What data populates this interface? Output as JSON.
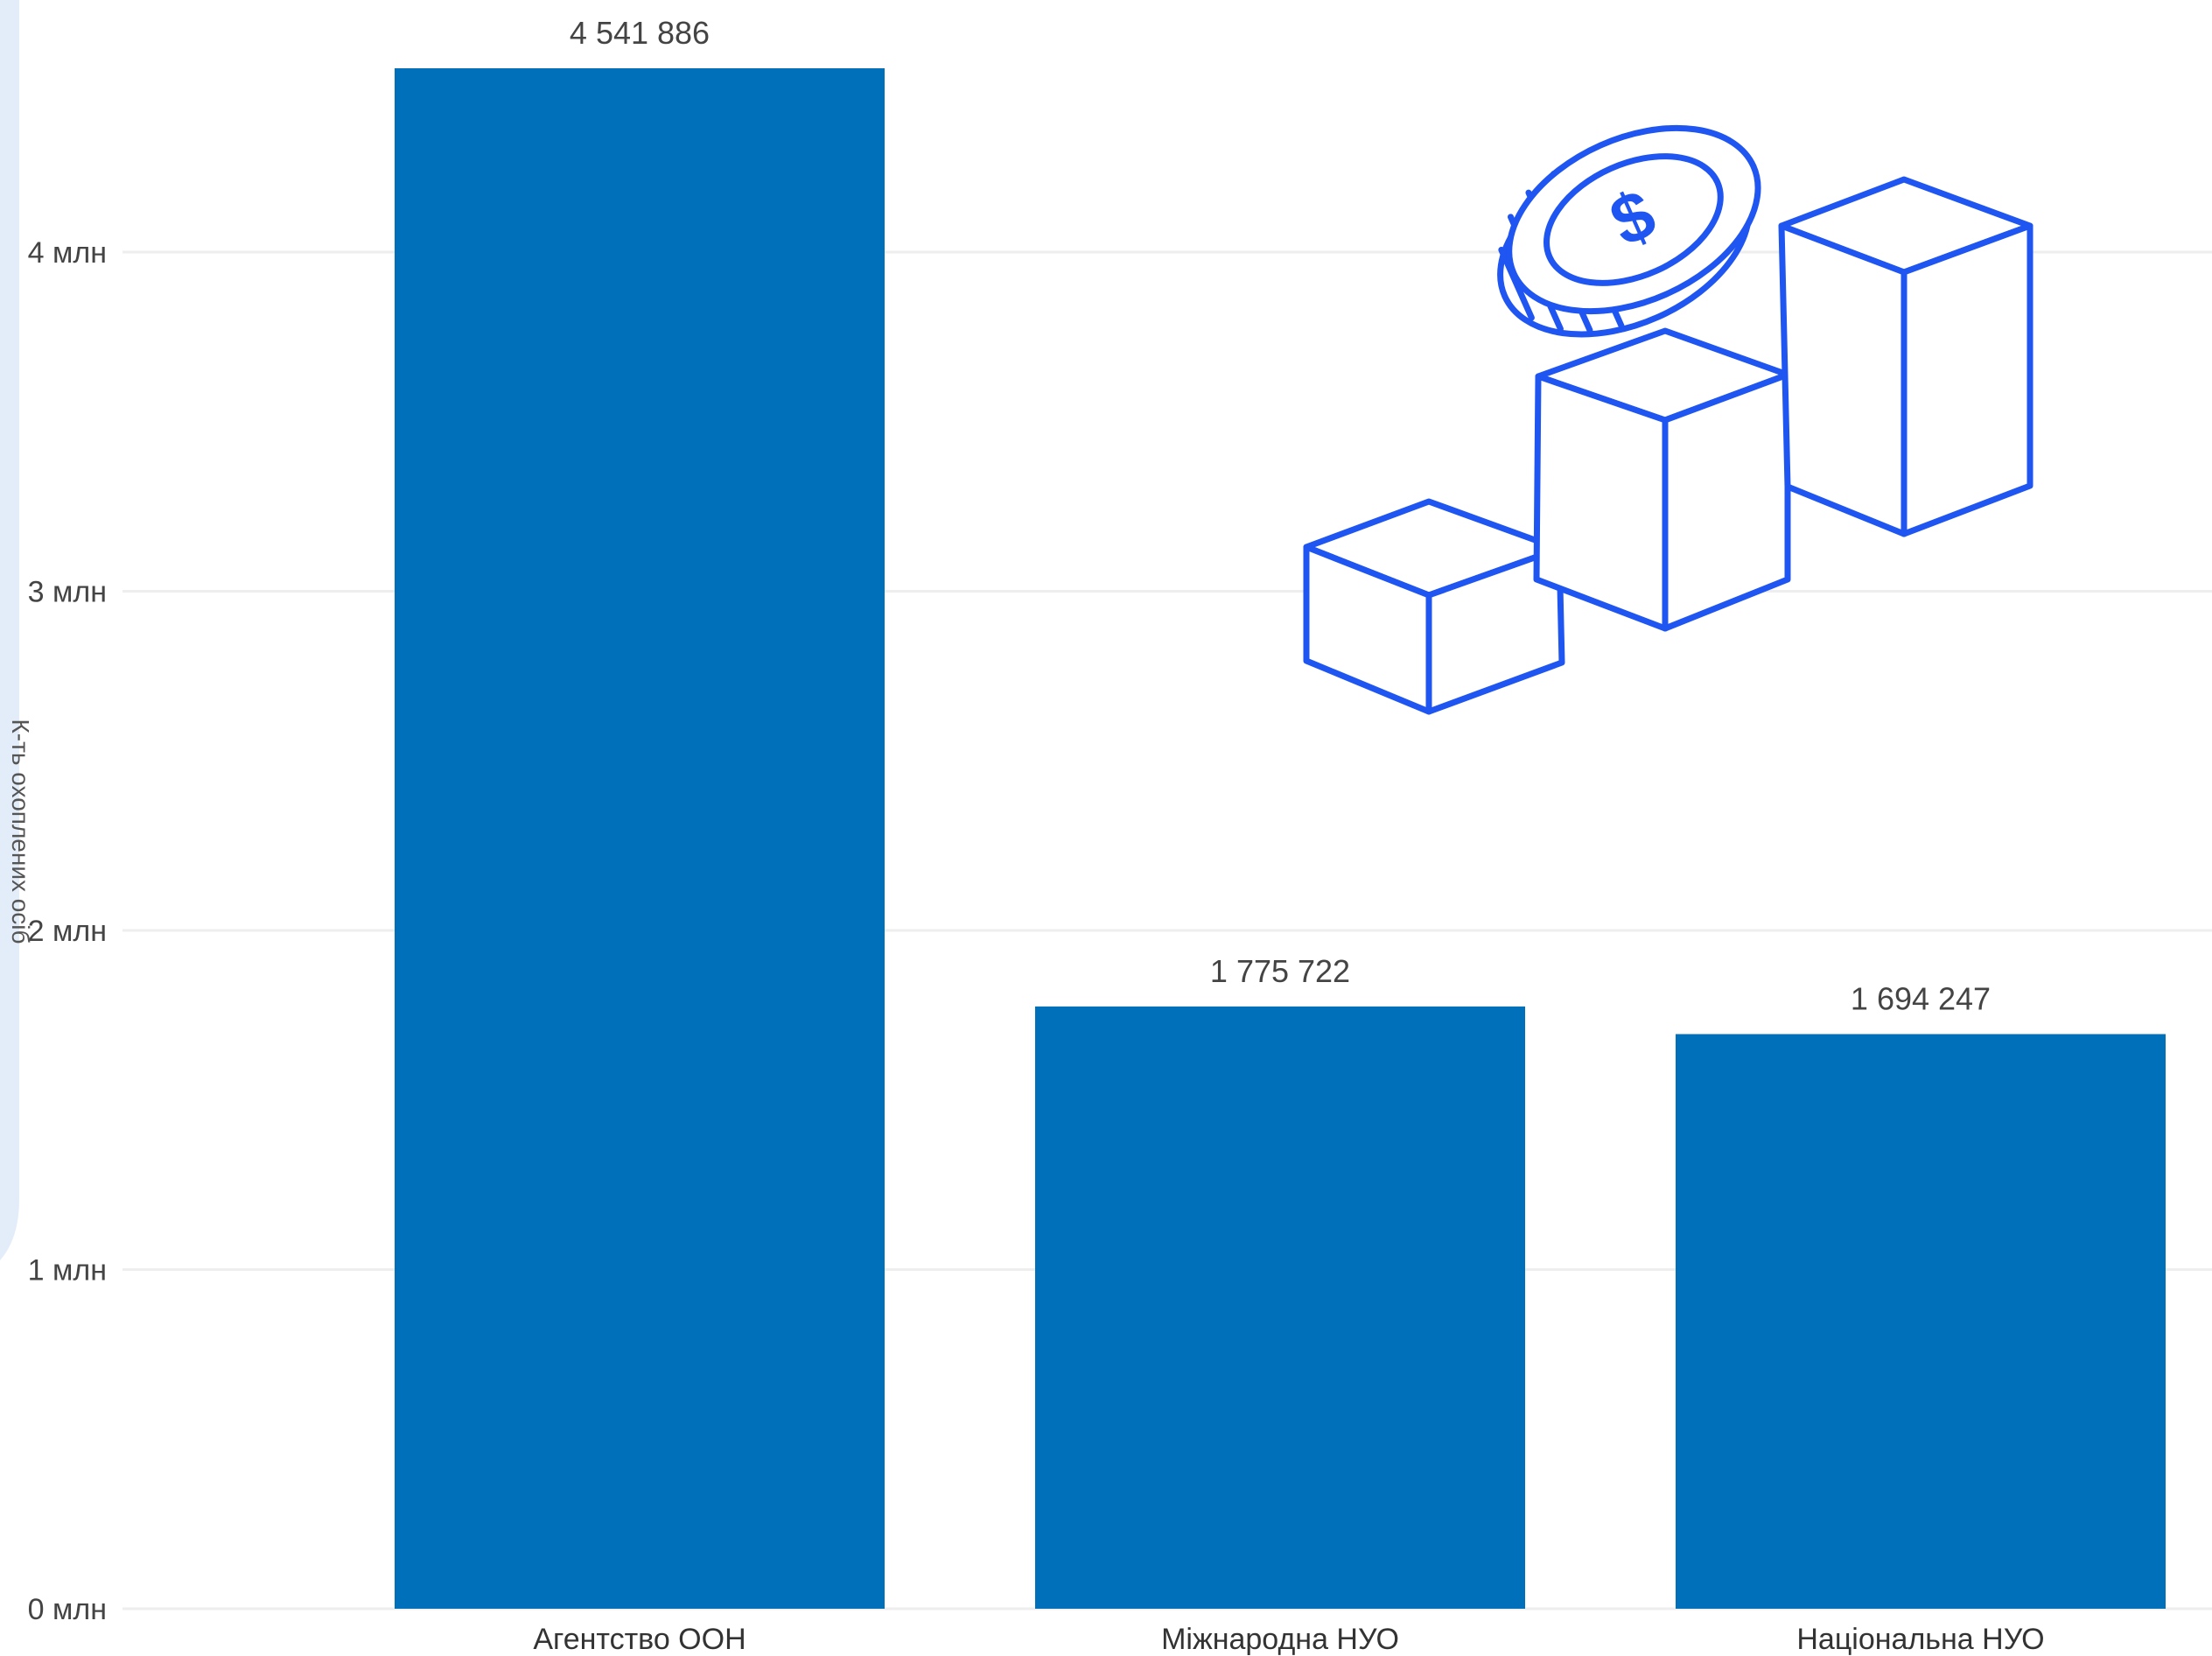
{
  "colors": {
    "bar": "#0070BA",
    "side_panel": "#E3EDFA",
    "illustration_stroke": "#1F55F0",
    "grid": "#EEEEEE"
  },
  "illustration": {
    "name": "coin-and-cubes-icon",
    "coin_symbol": "$"
  },
  "chart_data": {
    "type": "bar",
    "categories": [
      "Агентство ООН",
      "Міжнародна НУО",
      "Національна НУО"
    ],
    "values": [
      4541886,
      1775722,
      1694247
    ],
    "data_labels": [
      "4 541 886",
      "1 775 722",
      "1 694 247"
    ],
    "ylabel": "К-ть охоплених осіб",
    "xlabel": "",
    "ylim": [
      0,
      4541886
    ],
    "yticks": [
      0,
      1000000,
      2000000,
      3000000,
      4000000
    ],
    "ytick_labels": [
      "0 млн",
      "1 млн",
      "2 млн",
      "3 млн",
      "4 млн"
    ],
    "grid": true,
    "legend": "none"
  }
}
